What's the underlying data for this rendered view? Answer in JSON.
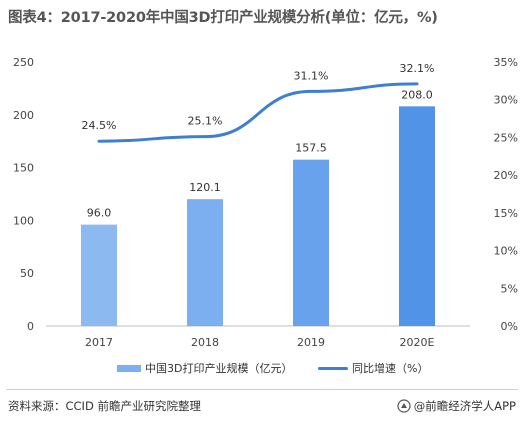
{
  "header": {
    "title": "图表4：2017-2020年中国3D打印产业规模分析(单位：亿元，%)"
  },
  "chart_data": {
    "type": "bar",
    "title": "图表4：2017-2020年中国3D打印产业规模分析(单位：亿元，%)",
    "categories": [
      "2017",
      "2018",
      "2019",
      "2020E"
    ],
    "series": [
      {
        "name": "中国3D打印产业规模（亿元）",
        "type": "bar",
        "axis": "left",
        "values": [
          96.0,
          120.1,
          157.5,
          208.0
        ],
        "labels": [
          "96.0",
          "120.1",
          "157.5",
          "208.0"
        ],
        "colors": [
          "#8cb9f0",
          "#7bafef",
          "#68a2ec",
          "#5193e6"
        ]
      },
      {
        "name": "同比增速（%）",
        "type": "line",
        "axis": "right",
        "values": [
          24.5,
          25.1,
          31.1,
          32.1
        ],
        "labels": [
          "24.5%",
          "25.1%",
          "31.1%",
          "32.1%"
        ],
        "color": "#3f7fd1",
        "smooth": true
      }
    ],
    "y_left": {
      "min": 0,
      "max": 250,
      "ticks": [
        "0",
        "50",
        "100",
        "150",
        "200",
        "250"
      ]
    },
    "y_right": {
      "min": 0,
      "max": 35,
      "ticks": [
        "0%",
        "5%",
        "10%",
        "15%",
        "20%",
        "25%",
        "30%",
        "35%"
      ]
    },
    "grid": false,
    "legend_position": "bottom"
  },
  "legend": {
    "bar_label": "中国3D打印产业规模（亿元）",
    "line_label": "同比增速（%）"
  },
  "footer": {
    "source": "资料来源：CCID 前瞻产业研究院整理",
    "brand": "@前瞻经济学人APP"
  }
}
